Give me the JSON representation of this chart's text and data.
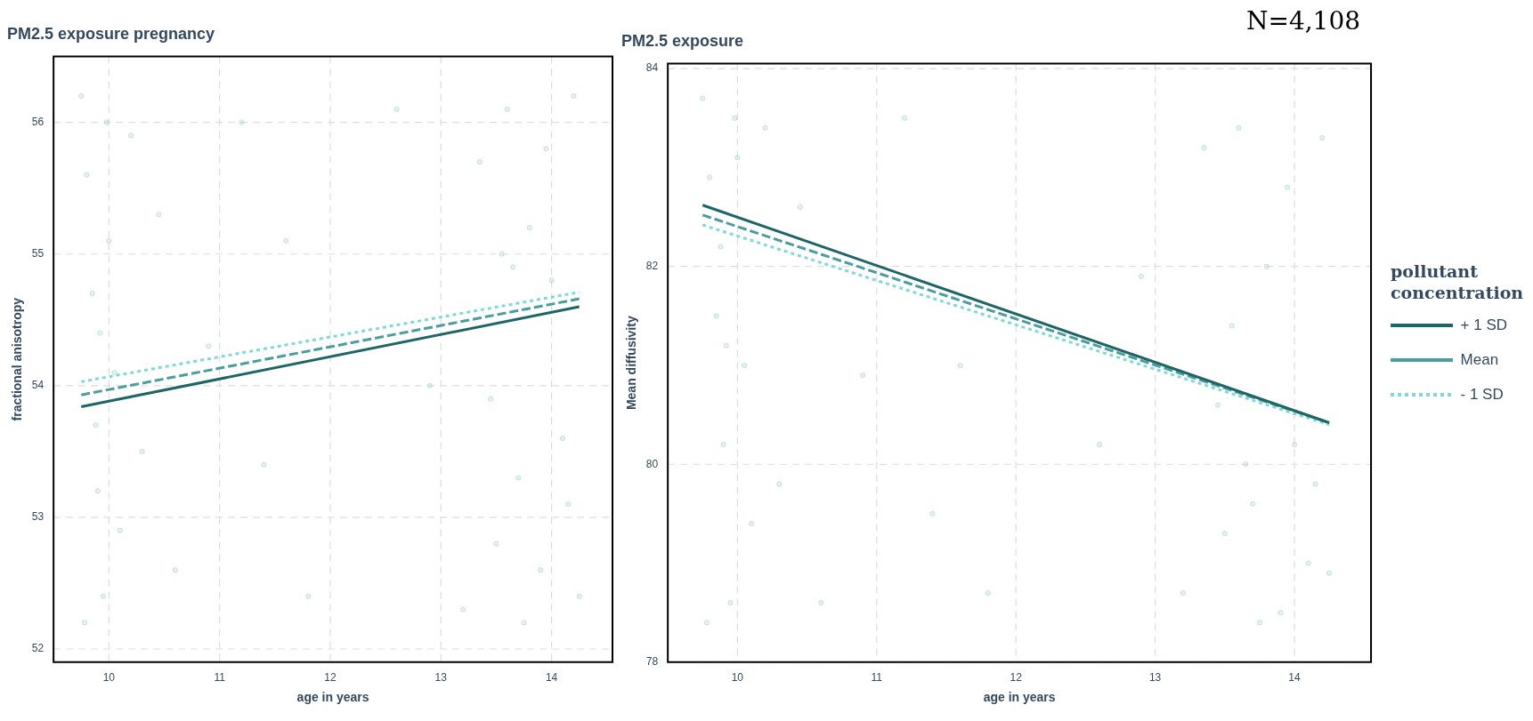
{
  "chart_data": [
    {
      "type": "line",
      "title": "PM2.5 exposure pregnancy",
      "xlabel": "age in years",
      "ylabel": "fractional anisotropy",
      "xlim": [
        9.5,
        14.55
      ],
      "ylim": [
        51.9,
        56.5
      ],
      "xticks": [
        10,
        11,
        12,
        13,
        14
      ],
      "yticks": [
        52,
        53,
        54,
        55,
        56
      ],
      "grid": true,
      "legend": false,
      "series": [
        {
          "type": "scatter",
          "marker": "circle",
          "color": "#9ccaca",
          "x": [
            9.75,
            9.8,
            9.85,
            9.9,
            9.95,
            10.0,
            10.05,
            10.1,
            9.78,
            9.88,
            9.98,
            10.2,
            10.3,
            10.45,
            10.6,
            10.9,
            11.2,
            11.4,
            11.6,
            11.8,
            12.6,
            12.9,
            13.2,
            13.35,
            13.45,
            13.5,
            13.6,
            13.65,
            13.7,
            13.8,
            13.9,
            14.0,
            14.1,
            14.2,
            14.25,
            13.55,
            13.75,
            13.95,
            14.15,
            9.92
          ],
          "values": [
            56.2,
            55.6,
            54.7,
            53.2,
            52.4,
            55.1,
            54.1,
            52.9,
            52.2,
            53.7,
            56.0,
            55.9,
            53.5,
            55.3,
            52.6,
            54.3,
            56.0,
            53.4,
            55.1,
            52.4,
            56.1,
            54.0,
            52.3,
            55.7,
            53.9,
            52.8,
            56.1,
            54.9,
            53.3,
            55.2,
            52.6,
            54.8,
            53.6,
            56.2,
            52.4,
            55.0,
            52.2,
            55.8,
            53.1,
            54.4
          ]
        },
        {
          "color": "#1e6666",
          "line_style": "solid",
          "marker": "none",
          "x": [
            9.75,
            14.25
          ],
          "values": [
            53.84,
            54.6
          ]
        },
        {
          "color": "#4a9e9e",
          "line_style": "dashed",
          "marker": "none",
          "x": [
            9.75,
            14.25
          ],
          "values": [
            53.93,
            54.66
          ]
        },
        {
          "color": "#7fd9d9",
          "line_style": "dotted",
          "marker": "none",
          "x": [
            9.75,
            14.25
          ],
          "values": [
            54.03,
            54.71
          ]
        }
      ]
    },
    {
      "type": "line",
      "title": "PM2.5 exposure",
      "xlabel": "age in years",
      "ylabel": "Mean diffusivity",
      "xlim": [
        9.5,
        14.55
      ],
      "ylim": [
        78,
        84.05
      ],
      "xticks": [
        10,
        11,
        12,
        13,
        14
      ],
      "yticks": [
        78,
        80,
        82,
        84
      ],
      "grid": true,
      "legend": "right",
      "legend_title": "pollutant concentration",
      "annotations": [
        "N=4,108"
      ],
      "series": [
        {
          "type": "scatter",
          "marker": "circle",
          "color": "#9ccaca",
          "x": [
            9.75,
            9.8,
            9.85,
            9.9,
            9.95,
            10.0,
            10.05,
            10.1,
            9.78,
            9.88,
            9.98,
            10.2,
            10.3,
            10.45,
            10.6,
            10.9,
            11.2,
            11.4,
            11.6,
            11.8,
            12.6,
            12.9,
            13.2,
            13.35,
            13.45,
            13.5,
            13.6,
            13.65,
            13.7,
            13.8,
            13.9,
            14.0,
            14.1,
            14.2,
            14.25,
            13.55,
            13.75,
            13.95,
            14.15,
            9.92
          ],
          "values": [
            83.7,
            82.9,
            81.5,
            80.2,
            78.6,
            83.1,
            81.0,
            79.4,
            78.4,
            82.2,
            83.5,
            83.4,
            79.8,
            82.6,
            78.6,
            80.9,
            83.5,
            79.5,
            81.0,
            78.7,
            80.2,
            81.9,
            78.7,
            83.2,
            80.6,
            79.3,
            83.4,
            80.0,
            79.6,
            82.0,
            78.5,
            80.2,
            79.0,
            83.3,
            78.9,
            81.4,
            78.4,
            82.8,
            79.8,
            81.2
          ]
        },
        {
          "name": "+ 1 SD",
          "color": "#1e6666",
          "line_style": "solid",
          "marker": "none",
          "x": [
            9.75,
            14.25
          ],
          "values": [
            82.62,
            80.42
          ]
        },
        {
          "name": "Mean",
          "color": "#4a9e9e",
          "line_style": "dashed",
          "marker": "none",
          "x": [
            9.75,
            14.25
          ],
          "values": [
            82.52,
            80.42
          ]
        },
        {
          "name": "- 1 SD",
          "color": "#7fd9d9",
          "line_style": "dotted",
          "marker": "none",
          "x": [
            9.75,
            14.25
          ],
          "values": [
            82.42,
            80.4
          ]
        }
      ]
    }
  ]
}
